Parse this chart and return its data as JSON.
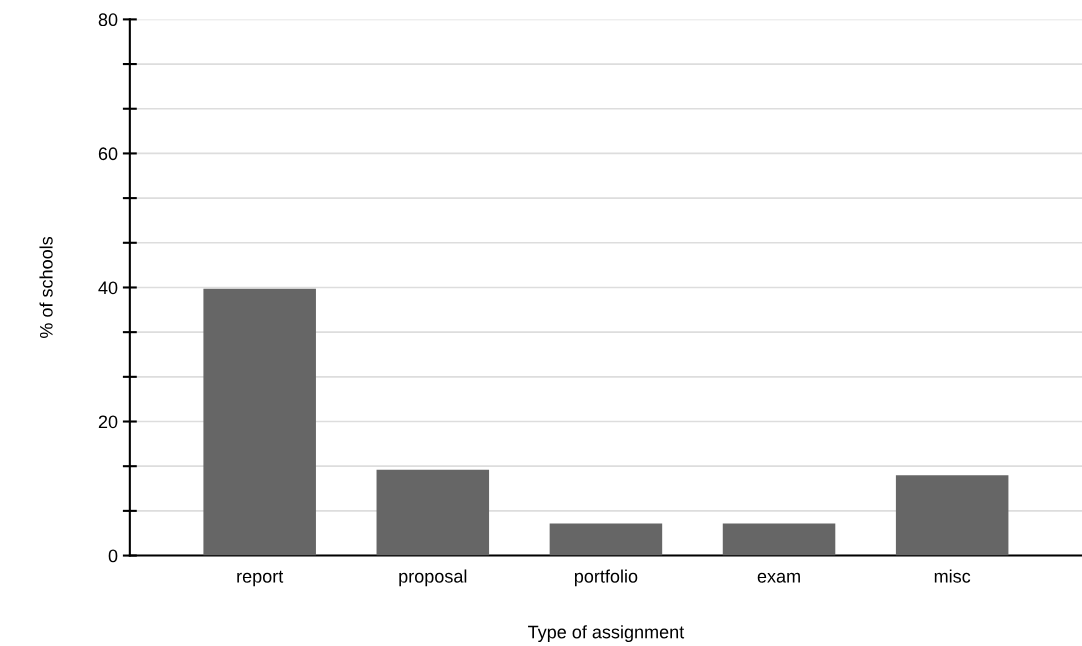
{
  "chart_data": {
    "type": "bar",
    "xlabel": "Type of assignment",
    "ylabel": "% of schools",
    "categories": [
      "report",
      "proposal",
      "portfolio",
      "exam",
      "misc"
    ],
    "values": [
      39.8,
      12.8,
      4.8,
      4.8,
      12.0
    ],
    "color": "#666666",
    "ylim": [
      0,
      80
    ],
    "yticks": [
      0,
      {
        "value": 6.667,
        "label": null
      },
      {
        "value": 13.333,
        "label": null
      },
      20,
      {
        "value": 26.667,
        "label": null
      },
      {
        "value": 33.333,
        "label": null
      },
      40,
      {
        "value": 46.667,
        "label": null
      },
      {
        "value": 53.333,
        "label": null
      },
      60,
      {
        "value": 66.667,
        "label": null
      },
      {
        "value": 73.333,
        "label": null
      },
      80
    ],
    "grid": "y"
  }
}
